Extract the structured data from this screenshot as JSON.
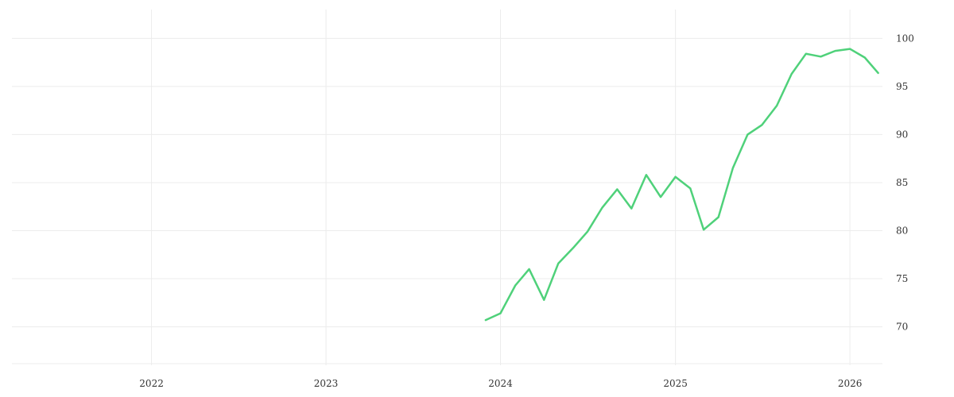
{
  "chart_data": {
    "type": "line",
    "title": "",
    "xlabel": "",
    "ylabel": "",
    "x_tick_labels": [
      "2022",
      "2023",
      "2024",
      "2025",
      "2026"
    ],
    "y_tick_labels": [
      "70",
      "75",
      "80",
      "85",
      "90",
      "95",
      "100"
    ],
    "y_ticks": [
      70,
      75,
      80,
      85,
      90,
      95,
      100
    ],
    "xlim": [
      "2021-03-15",
      "2026-03-10"
    ],
    "ylim": [
      66,
      103
    ],
    "grid": true,
    "y_axis_side": "right",
    "line_color": "#4fd17a",
    "series": [
      {
        "x": [
          "2023-12-01",
          "2024-01-01",
          "2024-02-01",
          "2024-03-01",
          "2024-04-01",
          "2024-05-01",
          "2024-06-01",
          "2024-07-01",
          "2024-08-01",
          "2024-09-01",
          "2024-10-01",
          "2024-11-01",
          "2024-12-01",
          "2025-01-01",
          "2025-02-01",
          "2025-03-01",
          "2025-04-01",
          "2025-05-01",
          "2025-06-01",
          "2025-07-01",
          "2025-08-01",
          "2025-09-01",
          "2025-10-01",
          "2025-11-01",
          "2025-12-01",
          "2026-01-01",
          "2026-02-01",
          "2026-03-01"
        ],
        "values": [
          70.7,
          71.4,
          74.3,
          76.0,
          72.8,
          76.6,
          78.2,
          79.9,
          82.4,
          84.3,
          82.3,
          85.8,
          83.5,
          85.6,
          84.4,
          80.1,
          81.4,
          86.5,
          90.0,
          91.0,
          93.0,
          96.3,
          98.4,
          98.1,
          98.7,
          98.9,
          98.0,
          96.4
        ]
      }
    ]
  }
}
